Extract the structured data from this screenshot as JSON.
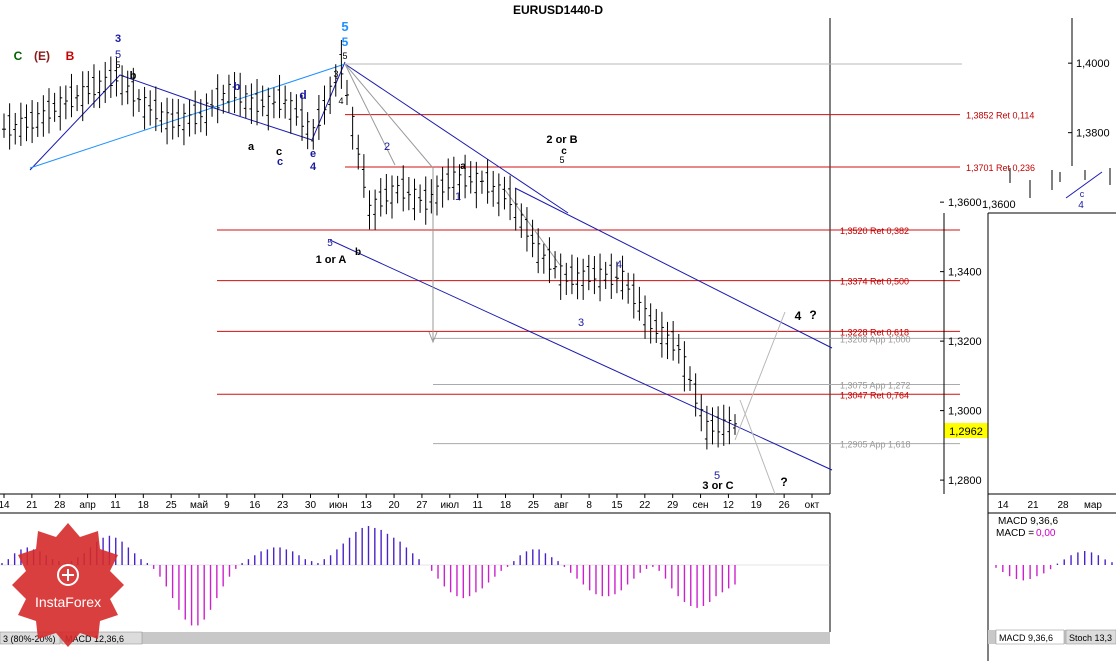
{
  "title": "EURUSD1440-D",
  "chart_data": {
    "type": "candlestick",
    "symbol": "EURUSD",
    "timeframe": "1440 (Daily)",
    "main_panel": {
      "ylim": [
        1.276,
        1.413
      ],
      "price_ticks": [
        "1,4000",
        "1,3800",
        "1,3600",
        "1,3400",
        "1,3200",
        "1,3000",
        "1,2800"
      ],
      "current_price": "1,2962",
      "x_ticks": [
        "14",
        "21",
        "28",
        "апр",
        "11",
        "18",
        "25",
        "май",
        "9",
        "16",
        "23",
        "30",
        "июн",
        "13",
        "20",
        "27",
        "июл",
        "11",
        "18",
        "25",
        "авг",
        "8",
        "15",
        "22",
        "29",
        "сен",
        "12",
        "19",
        "26",
        "окт"
      ],
      "price_series": [
        [
          "14",
          1.381
        ],
        [
          "21",
          1.383
        ],
        [
          "28",
          1.388
        ],
        [
          "апр",
          1.392
        ],
        [
          "11",
          1.396
        ],
        [
          "18",
          1.388
        ],
        [
          "25",
          1.383
        ],
        [
          "май",
          1.385
        ],
        [
          "9",
          1.392
        ],
        [
          "16",
          1.388
        ],
        [
          "23",
          1.389
        ],
        [
          "30",
          1.38
        ],
        [
          "июн",
          1.399
        ],
        [
          "13",
          1.358
        ],
        [
          "20",
          1.364
        ],
        [
          "27",
          1.36
        ],
        [
          "июл",
          1.367
        ],
        [
          "11",
          1.366
        ],
        [
          "18",
          1.361
        ],
        [
          "25",
          1.346
        ],
        [
          "авг",
          1.338
        ],
        [
          "8",
          1.339
        ],
        [
          "15",
          1.338
        ],
        [
          "22",
          1.325
        ],
        [
          "29",
          1.318
        ],
        [
          "сен",
          1.295
        ],
        [
          "12",
          1.2962
        ]
      ],
      "fibo_levels": [
        {
          "price": 1.3852,
          "label": "1,3852 Ret 0,114",
          "kind": "ret"
        },
        {
          "price": 1.3701,
          "label": "1,3701 Ret 0,236",
          "kind": "ret"
        },
        {
          "price": 1.352,
          "label": "1,3520 Ret 0,382",
          "kind": "ret"
        },
        {
          "price": 1.3374,
          "label": "1,3374 Ret 0,500",
          "kind": "ret"
        },
        {
          "price": 1.3228,
          "label": "1,3228 Ret 0,618",
          "kind": "ret"
        },
        {
          "price": 1.3208,
          "label": "1,3208 App 1,000",
          "kind": "app"
        },
        {
          "price": 1.3075,
          "label": "1,3075 App 1,272",
          "kind": "app"
        },
        {
          "price": 1.3047,
          "label": "1,3047 Ret 0,764",
          "kind": "ret"
        },
        {
          "price": 1.2905,
          "label": "1,2905 App 1,618",
          "kind": "app"
        }
      ],
      "wave_labels": [
        {
          "text": "C",
          "color": "#006400"
        },
        {
          "text": "(E)",
          "color": "#8b1a1a"
        },
        {
          "text": "B",
          "color": "#cc0000"
        },
        {
          "text": "3",
          "color": "#1a1aa0"
        },
        {
          "text": "5",
          "color": "#1a1aa0"
        },
        {
          "text": "5",
          "color": "#000000"
        },
        {
          "text": "5",
          "color": "#1e90ff"
        },
        {
          "text": "5",
          "color": "#1e90ff"
        },
        {
          "text": "5",
          "color": "#000000"
        },
        {
          "text": "3",
          "color": "#000000"
        },
        {
          "text": "4",
          "color": "#000000"
        },
        {
          "text": "2 or B",
          "color": "#000000"
        },
        {
          "text": "c",
          "color": "#000000"
        },
        {
          "text": "5",
          "color": "#000000"
        },
        {
          "text": "2",
          "color": "#1a1aa0"
        },
        {
          "text": "b",
          "color": "#000000"
        },
        {
          "text": "b",
          "color": "#1a1aa0"
        },
        {
          "text": "d",
          "color": "#1a1aa0"
        },
        {
          "text": "a",
          "color": "#000000"
        },
        {
          "text": "c",
          "color": "#000000"
        },
        {
          "text": "c",
          "color": "#1a1aa0"
        },
        {
          "text": "e",
          "color": "#1a1aa0"
        },
        {
          "text": "4",
          "color": "#1a1aa0"
        },
        {
          "text": "1 or A",
          "color": "#000000"
        },
        {
          "text": "5",
          "color": "#1a1aa0"
        },
        {
          "text": "b",
          "color": "#000000"
        },
        {
          "text": "1",
          "color": "#1a1aa0"
        },
        {
          "text": "4",
          "color": "#1a1aa0"
        },
        {
          "text": "3",
          "color": "#1a1aa0"
        },
        {
          "text": "4",
          "color": "#000000"
        },
        {
          "text": "?",
          "color": "#000000"
        },
        {
          "text": "5",
          "color": "#1a1aa0"
        },
        {
          "text": "3 or C",
          "color": "#000000"
        },
        {
          "text": "?",
          "color": "#000000"
        },
        {
          "text": "a",
          "color": "#000000"
        },
        {
          "text": "c",
          "color": "#1a1aa0"
        },
        {
          "text": "4",
          "color": "#1a1aa0"
        }
      ]
    },
    "indicator_panel": {
      "name": "MACD",
      "params": "12,36,6",
      "tabs": [
        "3 (80%-20%)",
        "MACD 12,36,6"
      ],
      "histogram": [
        1,
        3,
        6,
        8,
        9,
        8,
        7,
        5,
        3,
        2,
        1,
        2,
        4,
        6,
        9,
        12,
        14,
        15,
        14,
        12,
        9,
        6,
        3,
        1,
        -2,
        -6,
        -11,
        -17,
        -23,
        -28,
        -31,
        -31,
        -28,
        -23,
        -17,
        -11,
        -6,
        -2,
        1,
        3,
        5,
        7,
        8,
        9,
        9,
        8,
        7,
        5,
        3,
        2,
        1,
        3,
        5,
        8,
        11,
        14,
        17,
        19,
        20,
        19,
        18,
        16,
        14,
        12,
        9,
        6,
        3,
        0,
        -3,
        -7,
        -11,
        -14,
        -16,
        -17,
        -16,
        -14,
        -12,
        -9,
        -6,
        -3,
        -1,
        2,
        5,
        7,
        8,
        8,
        6,
        4,
        2,
        -1,
        -4,
        -7,
        -10,
        -13,
        -15,
        -16,
        -16,
        -15,
        -13,
        -10,
        -7,
        -4,
        -2,
        -1,
        -3,
        -7,
        -12,
        -16,
        -19,
        -21,
        -22,
        -21,
        -19,
        -16,
        -14,
        -12,
        -10
      ]
    },
    "side_panel": {
      "price_ticks": [
        "1,3600"
      ],
      "x_ticks": [
        "14",
        "21",
        "28",
        "мар"
      ],
      "macd_title": "MACD 9,36,6",
      "macd_value_label": "MACD =",
      "macd_value": "0,00",
      "tabs": [
        "MACD 9,36,6",
        "Stoch 13,3"
      ],
      "histogram": [
        -2,
        -5,
        -8,
        -10,
        -11,
        -10,
        -8,
        -6,
        -3,
        1,
        4,
        7,
        9,
        10,
        9,
        7,
        4,
        2
      ]
    }
  },
  "watermark": {
    "text": "InstaForex",
    "color": "#d62a2a"
  }
}
